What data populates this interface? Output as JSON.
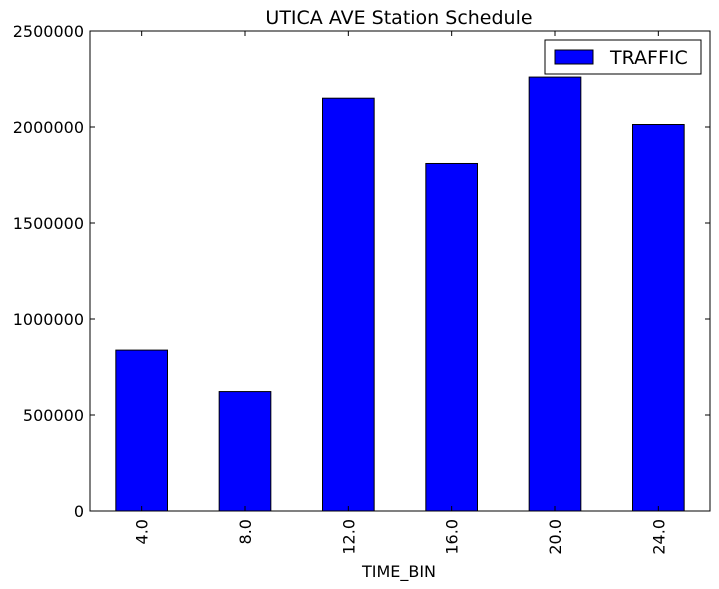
{
  "chart_data": {
    "type": "bar",
    "title": "UTICA AVE Station Schedule",
    "xlabel": "TIME_BIN",
    "ylabel": "",
    "categories": [
      "4.0",
      "8.0",
      "12.0",
      "16.0",
      "20.0",
      "24.0"
    ],
    "series": [
      {
        "name": "TRAFFIC",
        "values": [
          838000,
          622000,
          2150000,
          1810000,
          2260000,
          2013000
        ]
      }
    ],
    "ylim": [
      0,
      2500000
    ],
    "yticks": [
      "0",
      "500000",
      "1000000",
      "1500000",
      "2000000",
      "2500000"
    ],
    "grid": false,
    "legend_position": "top-right",
    "colors": {
      "bar": "#0000ff",
      "edge": "#000000"
    }
  }
}
